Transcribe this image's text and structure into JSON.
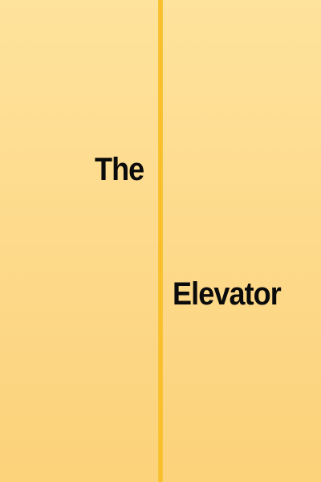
{
  "poster": {
    "title_line_1": "The",
    "title_line_2": "Elevator"
  },
  "colors": {
    "background": "#fdd87c",
    "door_highlight": "#fee39c",
    "seam": "#fbbd24",
    "text": "#0b0b0b"
  }
}
